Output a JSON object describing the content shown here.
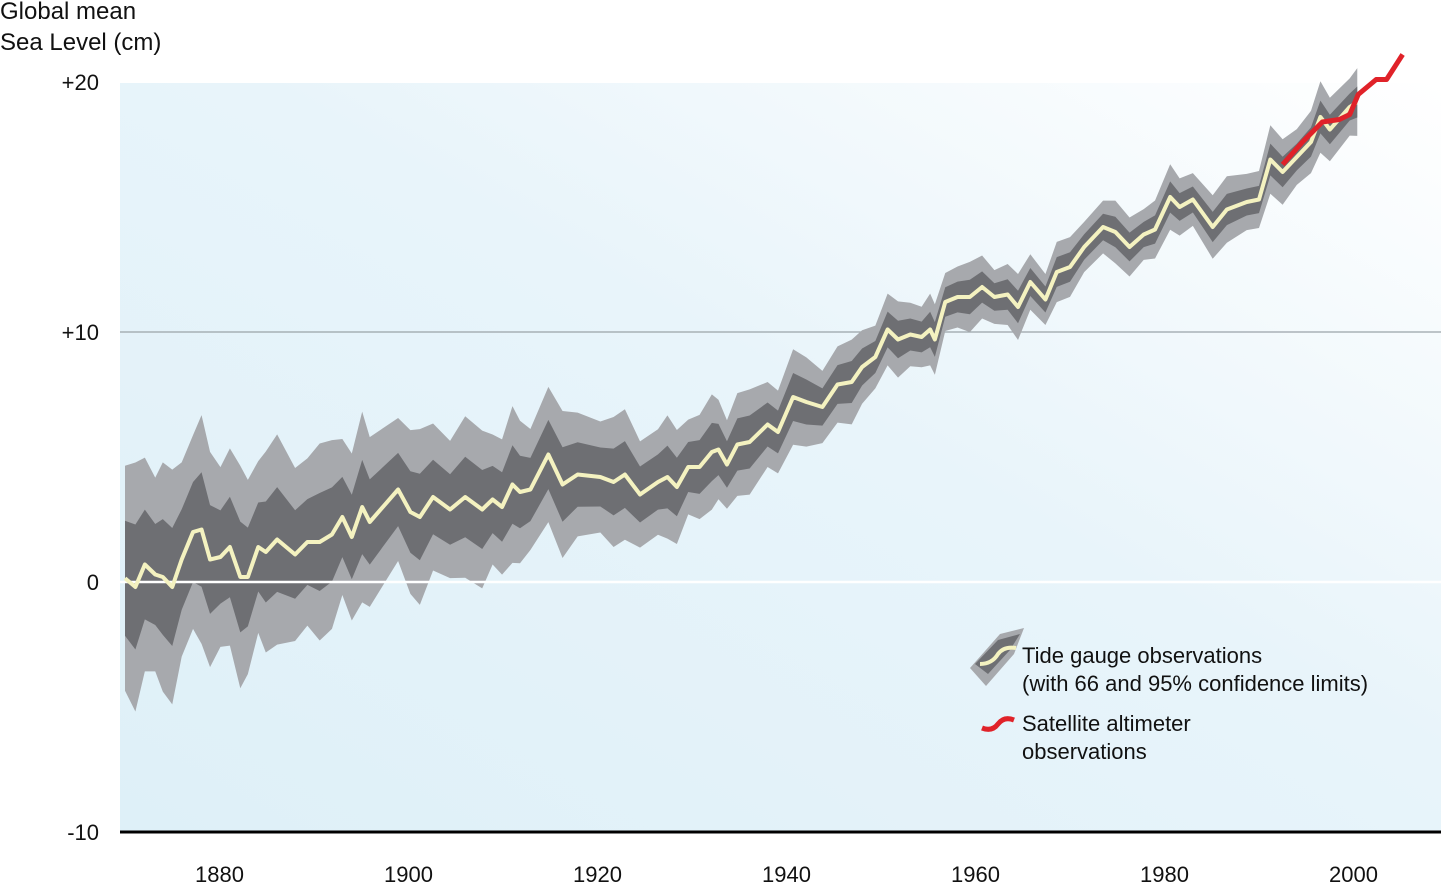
{
  "chart_data": {
    "type": "line",
    "title": "",
    "ylabel_line1": "Global mean",
    "ylabel_line2": "Sea Level (cm)",
    "xlabel": "",
    "xlim": [
      1870,
      2010
    ],
    "ylim": [
      -10,
      20
    ],
    "x_ticks": [
      1880,
      1900,
      1920,
      1940,
      1960,
      1980,
      2000
    ],
    "x_tick_labels": [
      "1880",
      "1900",
      "1920",
      "1940",
      "1960",
      "1980",
      "2000"
    ],
    "y_ticks": [
      20,
      10,
      0,
      -10
    ],
    "y_tick_labels": [
      "+20",
      "+10",
      "0",
      "-10"
    ],
    "gridlines_y": [
      10,
      0
    ],
    "legend_position": "bottom-right",
    "series": [
      {
        "name": "Tide gauge observations",
        "name_line2": "(with 66 and 95% confidence limits)",
        "color": "#f4f2c0",
        "band66_color": "#6e6f73",
        "band95_color": "#a7a9ad",
        "x": [
          1870.0,
          1871.1,
          1872.1,
          1873.2,
          1874.0,
          1875.0,
          1876.0,
          1877.2,
          1878.1,
          1879.0,
          1880.1,
          1881.1,
          1882.2,
          1883.0,
          1884.1,
          1884.9,
          1886.1,
          1888.0,
          1889.3,
          1890.6,
          1891.9,
          1893.0,
          1894.0,
          1895.1,
          1895.9,
          1898.9,
          1900.2,
          1901.2,
          1902.6,
          1904.4,
          1906.0,
          1907.8,
          1908.9,
          1909.9,
          1911.0,
          1911.8,
          1912.9,
          1914.8,
          1916.3,
          1917.9,
          1920.3,
          1921.7,
          1922.9,
          1924.5,
          1926.4,
          1927.4,
          1928.4,
          1929.6,
          1930.8,
          1932.1,
          1932.8,
          1933.7,
          1934.8,
          1936.1,
          1938.0,
          1939.1,
          1940.7,
          1942.1,
          1943.8,
          1945.4,
          1946.9,
          1948.0,
          1949.4,
          1950.7,
          1951.8,
          1953.1,
          1954.3,
          1955.2,
          1955.7,
          1956.8,
          1958.1,
          1959.4,
          1960.7,
          1962.0,
          1963.4,
          1964.5,
          1965.8,
          1967.4,
          1968.6,
          1970.0,
          1971.5,
          1973.5,
          1974.8,
          1976.3,
          1977.8,
          1979.0,
          1980.6,
          1981.6,
          1983.0,
          1985.1,
          1986.6,
          1988.7,
          1990.0,
          1991.2,
          1992.5,
          1994.0,
          1995.5,
          1996.5,
          1997.5,
          1999.6,
          2000.4
        ],
        "y": [
          0.15,
          -0.2,
          0.7,
          0.3,
          0.2,
          -0.2,
          0.9,
          2.0,
          2.1,
          0.9,
          1.0,
          1.4,
          0.2,
          0.2,
          1.4,
          1.2,
          1.7,
          1.1,
          1.6,
          1.6,
          1.9,
          2.6,
          1.8,
          3.0,
          2.4,
          3.7,
          2.8,
          2.6,
          3.4,
          2.9,
          3.4,
          2.9,
          3.3,
          3.0,
          3.9,
          3.6,
          3.7,
          5.1,
          3.9,
          4.3,
          4.2,
          4.0,
          4.3,
          3.5,
          4.0,
          4.2,
          3.8,
          4.6,
          4.6,
          5.2,
          5.3,
          4.7,
          5.5,
          5.6,
          6.3,
          6.0,
          7.4,
          7.2,
          7.0,
          7.9,
          8.0,
          8.6,
          9.0,
          10.1,
          9.7,
          9.9,
          9.8,
          10.1,
          9.7,
          11.2,
          11.4,
          11.4,
          11.8,
          11.4,
          11.5,
          11.0,
          12.0,
          11.3,
          12.4,
          12.6,
          13.4,
          14.2,
          14.0,
          13.4,
          13.9,
          14.1,
          15.4,
          15.0,
          15.3,
          14.2,
          14.9,
          15.2,
          15.3,
          16.9,
          16.4,
          17.0,
          17.6,
          18.6,
          18.1,
          19.0,
          19.2
        ],
        "confidence_66_halfwidth": {
          "years": [
            1870,
            1900,
            1920,
            1950,
            1970,
            2000
          ],
          "values": [
            2.3,
            1.6,
            1.3,
            0.7,
            0.55,
            0.6
          ]
        },
        "confidence_95_halfwidth": {
          "years": [
            1870,
            1900,
            1920,
            1950,
            1970,
            2000
          ],
          "values": [
            4.5,
            3.2,
            2.5,
            1.4,
            1.1,
            1.3
          ]
        }
      },
      {
        "name": "Satellite altimeter",
        "name_line2": "observations",
        "color": "#e02229",
        "x": [
          1992.5,
          1994.6,
          1996.7,
          1998.5,
          1999.6,
          2000.5,
          2002.4,
          2003.5,
          2005.2
        ],
        "y": [
          16.7,
          17.6,
          18.4,
          18.5,
          18.7,
          19.5,
          20.1,
          20.1,
          21.1
        ]
      }
    ]
  }
}
